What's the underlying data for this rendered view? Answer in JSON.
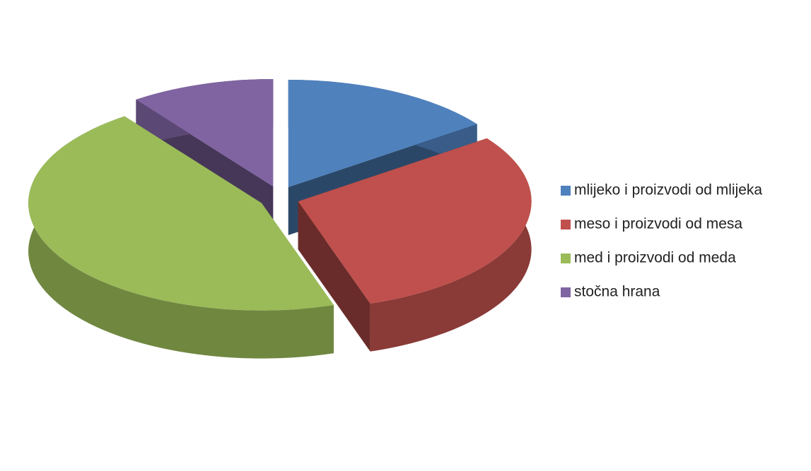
{
  "chart_data": {
    "type": "pie3d",
    "categories": [
      "mlijeko i proizvodi od mlijeka",
      "meso i proizvodi od mesa",
      "med i proizvodi od meda",
      "stočna hrana"
    ],
    "values": [
      15,
      30,
      45,
      10
    ],
    "colors": [
      "#4f81bd",
      "#c0504d",
      "#9bbb59",
      "#8064a2"
    ],
    "exploded": true,
    "legend": "right"
  }
}
